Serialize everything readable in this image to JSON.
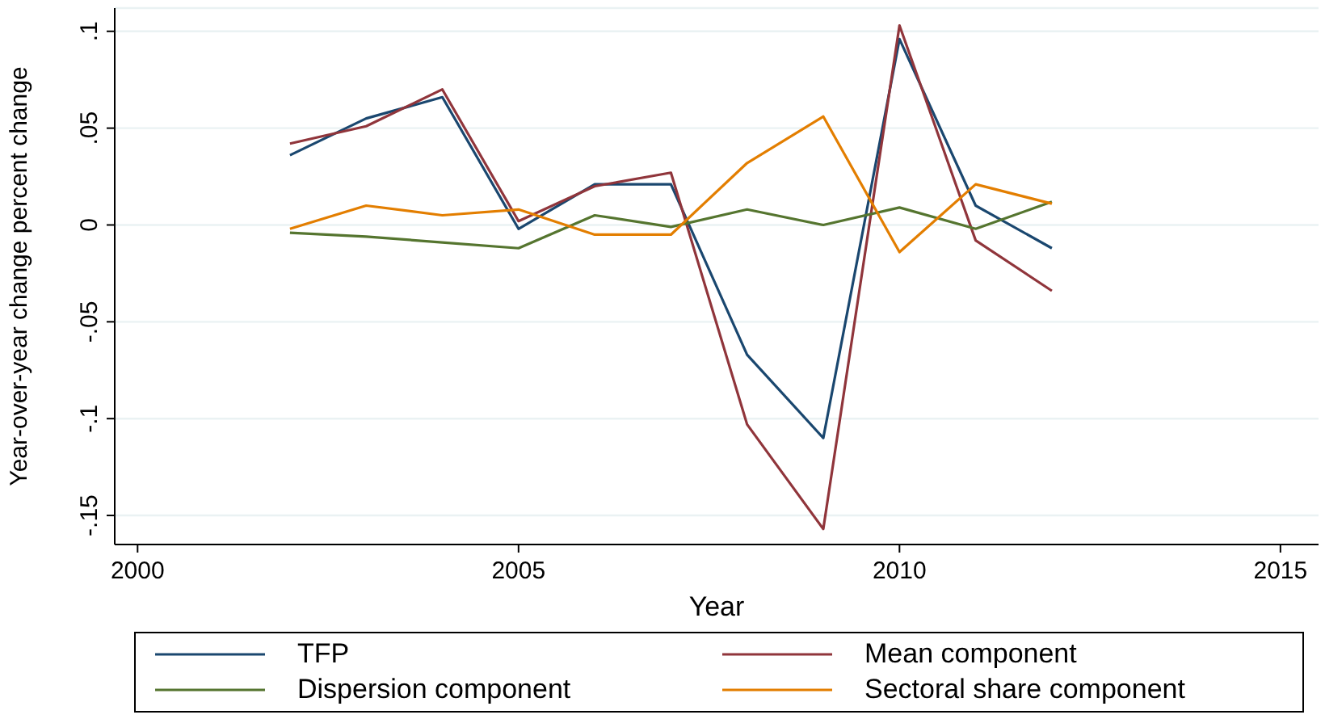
{
  "chart_data": {
    "type": "line",
    "xlabel": "Year",
    "ylabel": "Year-over-year change percent change",
    "x": [
      2002,
      2003,
      2004,
      2005,
      2006,
      2007,
      2008,
      2009,
      2010,
      2011,
      2012
    ],
    "series": [
      {
        "name": "TFP",
        "color": "#1a476f",
        "values": [
          0.036,
          0.055,
          0.066,
          -0.002,
          0.021,
          0.021,
          -0.067,
          -0.11,
          0.096,
          0.01,
          -0.012
        ]
      },
      {
        "name": "Mean component",
        "color": "#90353b",
        "values": [
          0.042,
          0.051,
          0.07,
          0.002,
          0.02,
          0.027,
          -0.103,
          -0.157,
          0.103,
          -0.008,
          -0.034
        ]
      },
      {
        "name": "Dispersion component",
        "color": "#55752f",
        "values": [
          -0.004,
          -0.006,
          -0.009,
          -0.012,
          0.005,
          -0.001,
          0.008,
          0.0,
          0.009,
          -0.002,
          0.012
        ]
      },
      {
        "name": "Sectoral share component",
        "color": "#e37e00",
        "values": [
          -0.002,
          0.01,
          0.005,
          0.008,
          -0.005,
          -0.005,
          0.032,
          0.056,
          -0.014,
          0.021,
          0.011
        ]
      }
    ],
    "xlim": [
      1999.7,
      2015.5
    ],
    "xticks": [
      2000,
      2005,
      2010,
      2015
    ],
    "ylim": [
      -0.165,
      0.112
    ],
    "yticks": [
      {
        "value": -0.15,
        "label": "-.15"
      },
      {
        "value": -0.1,
        "label": "-.1"
      },
      {
        "value": -0.05,
        "label": "-.05"
      },
      {
        "value": 0,
        "label": "0"
      },
      {
        "value": 0.05,
        "label": ".05"
      },
      {
        "value": 0.1,
        "label": ".1"
      }
    ],
    "grid": "y",
    "legend": "bottom",
    "marker": "none",
    "line_style": "solid"
  }
}
